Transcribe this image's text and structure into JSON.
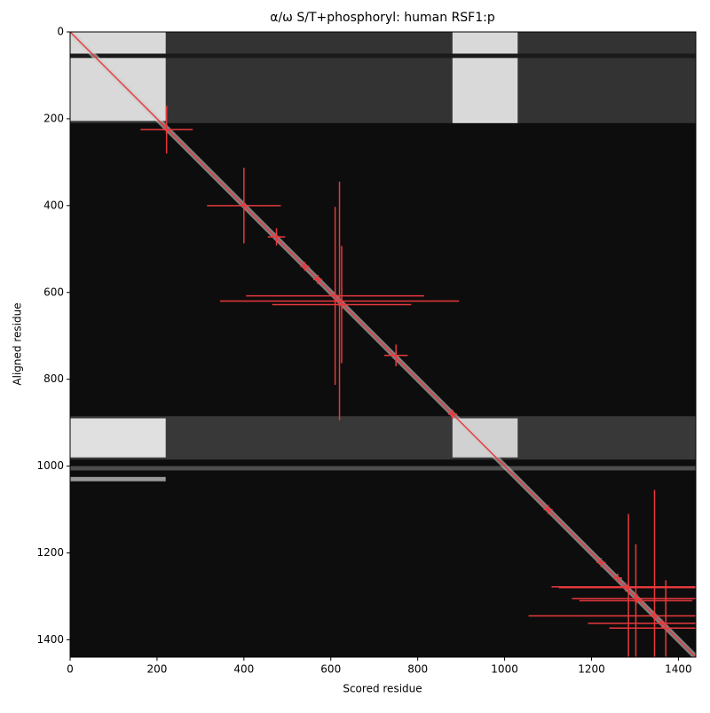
{
  "chart_data": {
    "type": "heatmap",
    "title": "α/ω S/T+phosphoryl: human RSF1:p",
    "x_label": "Scored residue",
    "y_label": "Aligned residue",
    "xlim": [
      0,
      1440
    ],
    "ylim": [
      1440,
      0
    ],
    "xticks": [
      0,
      200,
      400,
      600,
      800,
      1000,
      1200,
      1400
    ],
    "yticks": [
      0,
      200,
      400,
      600,
      800,
      1000,
      1200,
      1400
    ],
    "background_level": 0.05,
    "regions": [
      {
        "x": [
          0,
          1440
        ],
        "y": [
          0,
          210
        ],
        "level": 0.2
      },
      {
        "x": [
          0,
          1440
        ],
        "y": [
          885,
          985
        ],
        "level": 0.22
      },
      {
        "x": [
          0,
          220
        ],
        "y": [
          0,
          205
        ],
        "level": 0.85
      },
      {
        "x": [
          880,
          1030
        ],
        "y": [
          0,
          210
        ],
        "level": 0.85
      },
      {
        "x": [
          0,
          220
        ],
        "y": [
          890,
          980
        ],
        "level": 0.88
      },
      {
        "x": [
          880,
          1030
        ],
        "y": [
          890,
          980
        ],
        "level": 0.82
      },
      {
        "x": [
          0,
          1440
        ],
        "y": [
          1000,
          1010
        ],
        "level": 0.3
      },
      {
        "x": [
          0,
          220
        ],
        "y": [
          1025,
          1035
        ],
        "level": 0.6
      },
      {
        "x": [
          0,
          1440
        ],
        "y": [
          50,
          60
        ],
        "level": 0.1
      }
    ],
    "diagonal_level": 0.8,
    "color": "#e8383d",
    "points": {
      "x": [
        222,
        400,
        475,
        540,
        570,
        610,
        620,
        625,
        750,
        880,
        1100,
        1222,
        1260,
        1285,
        1302,
        1345,
        1371,
        1278,
        1305,
        1362
      ],
      "y": [
        225,
        400,
        472,
        540,
        570,
        608,
        620,
        628,
        745,
        880,
        1100,
        1222,
        1258,
        1280,
        1310,
        1345,
        1373,
        1278,
        1305,
        1362
      ],
      "xerr": [
        60,
        85,
        20,
        5,
        10,
        205,
        275,
        160,
        27,
        5,
        5,
        10,
        10,
        160,
        130,
        290,
        130,
        170,
        150,
        170
      ],
      "yerr": [
        55,
        87,
        20,
        5,
        10,
        205,
        275,
        135,
        25,
        5,
        5,
        10,
        10,
        170,
        130,
        290,
        110,
        5,
        5,
        5
      ]
    }
  }
}
